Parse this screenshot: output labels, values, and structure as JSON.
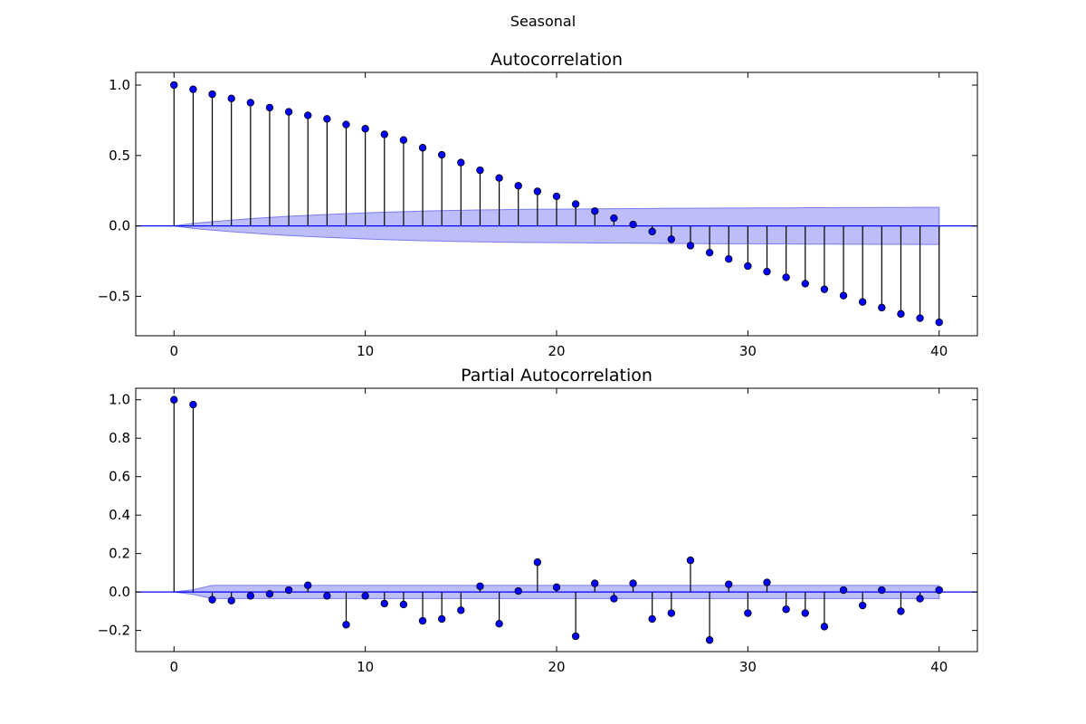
{
  "figure": {
    "suptitle": "Seasonal"
  },
  "chart_data": [
    {
      "type": "stem",
      "title": "Autocorrelation",
      "xlabel": "",
      "ylabel": "",
      "xlim": [
        -2,
        42
      ],
      "ylim": [
        -0.78,
        1.09
      ],
      "xticks": [
        0,
        10,
        20,
        30,
        40
      ],
      "yticks": [
        -0.5,
        0.0,
        0.5,
        1.0
      ],
      "ytick_labels": [
        "−0.5",
        "0.0",
        "0.5",
        "1.0"
      ],
      "grid": false,
      "lags": [
        0,
        1,
        2,
        3,
        4,
        5,
        6,
        7,
        8,
        9,
        10,
        11,
        12,
        13,
        14,
        15,
        16,
        17,
        18,
        19,
        20,
        21,
        22,
        23,
        24,
        25,
        26,
        27,
        28,
        29,
        30,
        31,
        32,
        33,
        34,
        35,
        36,
        37,
        38,
        39,
        40
      ],
      "values": [
        1.0,
        0.97,
        0.935,
        0.905,
        0.875,
        0.84,
        0.81,
        0.785,
        0.76,
        0.72,
        0.69,
        0.65,
        0.61,
        0.555,
        0.505,
        0.45,
        0.395,
        0.34,
        0.285,
        0.245,
        0.21,
        0.155,
        0.105,
        0.055,
        0.01,
        -0.04,
        -0.095,
        -0.14,
        -0.19,
        -0.235,
        -0.285,
        -0.325,
        -0.365,
        -0.41,
        -0.45,
        -0.495,
        -0.54,
        -0.58,
        -0.625,
        -0.655,
        -0.685
      ],
      "confint": [
        0,
        0.018,
        0.03,
        0.041,
        0.051,
        0.06,
        0.068,
        0.075,
        0.081,
        0.087,
        0.092,
        0.097,
        0.101,
        0.105,
        0.108,
        0.111,
        0.113,
        0.115,
        0.117,
        0.118,
        0.119,
        0.12,
        0.121,
        0.122,
        0.123,
        0.124,
        0.125,
        0.125,
        0.126,
        0.127,
        0.127,
        0.128,
        0.128,
        0.129,
        0.129,
        0.13,
        0.13,
        0.131,
        0.131,
        0.132,
        0.132
      ],
      "colors": {
        "marker": "#0000ff",
        "stem": "#000000",
        "zero_line": "#0000ff",
        "band": "#7b7bf5"
      }
    },
    {
      "type": "stem",
      "title": "Partial Autocorrelation",
      "xlabel": "",
      "ylabel": "",
      "xlim": [
        -2,
        42
      ],
      "ylim": [
        -0.31,
        1.06
      ],
      "xticks": [
        0,
        10,
        20,
        30,
        40
      ],
      "yticks": [
        -0.2,
        0.0,
        0.2,
        0.4,
        0.6,
        0.8,
        1.0
      ],
      "ytick_labels": [
        "−0.2",
        "0.0",
        "0.2",
        "0.4",
        "0.6",
        "0.8",
        "1.0"
      ],
      "grid": false,
      "lags": [
        0,
        1,
        2,
        3,
        4,
        5,
        6,
        7,
        8,
        9,
        10,
        11,
        12,
        13,
        14,
        15,
        16,
        17,
        18,
        19,
        20,
        21,
        22,
        23,
        24,
        25,
        26,
        27,
        28,
        29,
        30,
        31,
        32,
        33,
        34,
        35,
        36,
        37,
        38,
        39,
        40
      ],
      "values": [
        1.0,
        0.975,
        -0.04,
        -0.045,
        -0.02,
        -0.01,
        0.01,
        0.035,
        -0.02,
        -0.17,
        -0.02,
        -0.06,
        -0.065,
        -0.15,
        -0.14,
        -0.095,
        0.03,
        -0.165,
        0.005,
        0.155,
        0.025,
        -0.23,
        0.045,
        -0.035,
        0.045,
        -0.14,
        -0.11,
        0.165,
        -0.25,
        0.04,
        -0.11,
        0.05,
        -0.09,
        -0.11,
        -0.18,
        0.01,
        -0.07,
        0.01,
        -0.1,
        -0.035,
        0.01
      ],
      "confint": [
        0,
        0.012,
        0.034,
        0.034,
        0.034,
        0.034,
        0.034,
        0.034,
        0.034,
        0.034,
        0.034,
        0.034,
        0.034,
        0.034,
        0.034,
        0.034,
        0.034,
        0.034,
        0.034,
        0.034,
        0.034,
        0.034,
        0.034,
        0.034,
        0.034,
        0.034,
        0.034,
        0.034,
        0.034,
        0.034,
        0.034,
        0.034,
        0.034,
        0.034,
        0.034,
        0.034,
        0.034,
        0.034,
        0.034,
        0.034,
        0.034
      ],
      "colors": {
        "marker": "#0000ff",
        "stem": "#000000",
        "zero_line": "#0000ff",
        "band": "#7b7bf5"
      }
    }
  ]
}
